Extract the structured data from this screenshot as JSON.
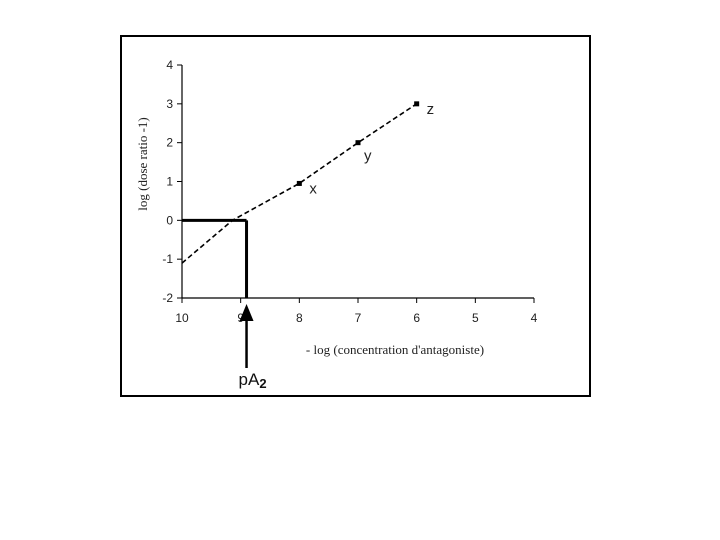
{
  "chart_data": {
    "type": "line",
    "xlabel": "- log (concentration d'antagoniste)",
    "ylabel": "log (dose ratio -1)",
    "xlim": [
      10,
      4
    ],
    "ylim": [
      -2,
      4
    ],
    "x_ticks": [
      "10",
      "9",
      "8",
      "7",
      "6",
      "5",
      "4"
    ],
    "y_ticks": [
      "-2",
      "-1",
      "0",
      "1",
      "2",
      "3",
      "4"
    ],
    "grid": false,
    "series": [
      {
        "style": "dashed",
        "x": [
          10,
          9.14,
          8,
          7,
          6
        ],
        "y": [
          -1.1,
          0,
          0.95,
          2,
          3
        ]
      }
    ],
    "points": [
      {
        "label": "x",
        "x": 8,
        "y": 0.95
      },
      {
        "label": "y",
        "x": 7,
        "y": 2
      },
      {
        "label": "z",
        "x": 6,
        "y": 3
      }
    ],
    "annotation": {
      "label_main": "pA",
      "label_sub": "2",
      "x": 8.9,
      "y": 0
    },
    "colors": {
      "line": "#000000",
      "axis": "#000000"
    }
  }
}
